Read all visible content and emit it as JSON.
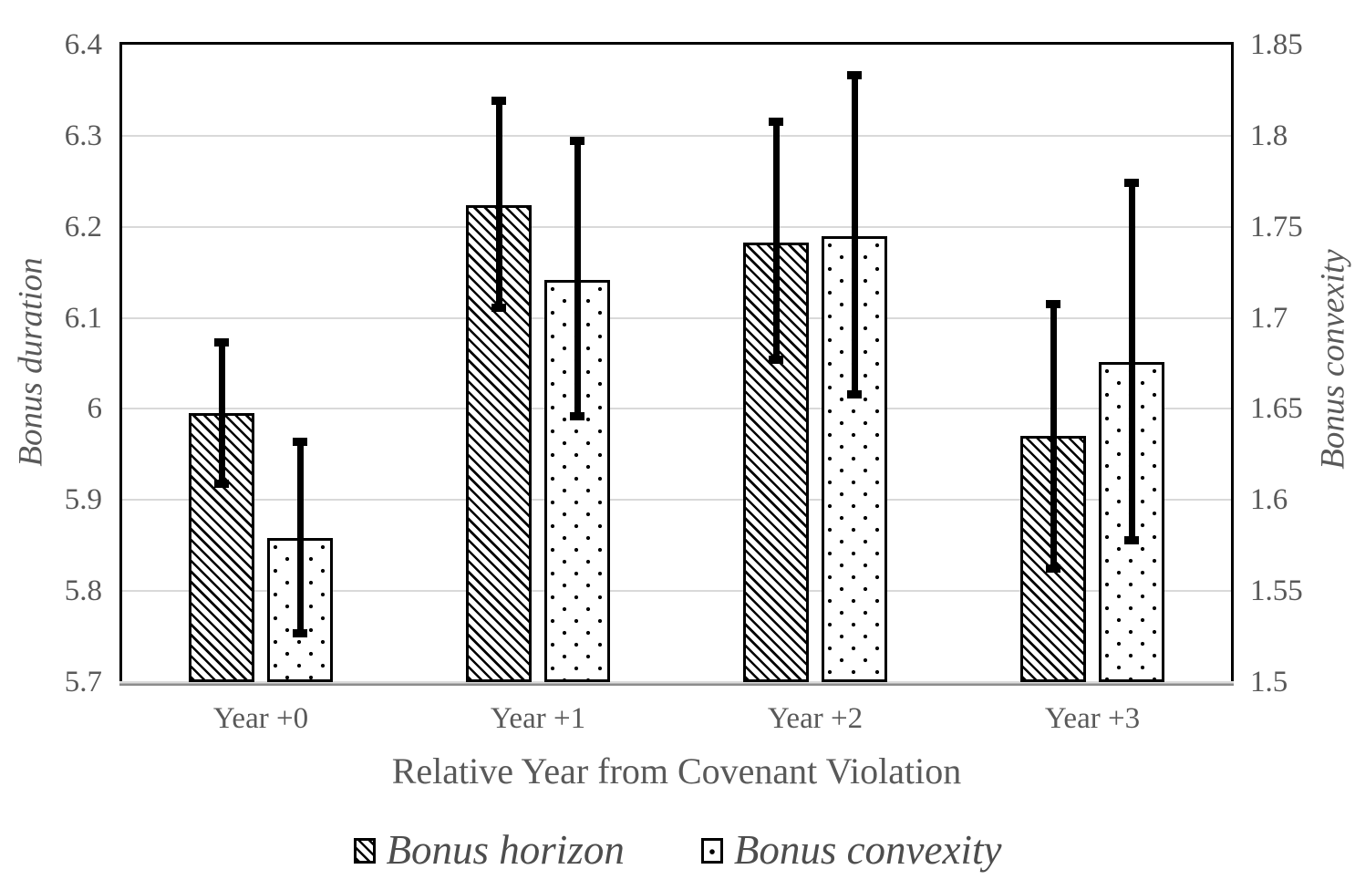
{
  "chart_data": {
    "type": "bar",
    "categories": [
      "Year +0",
      "Year +1",
      "Year +2",
      "Year +3"
    ],
    "series": [
      {
        "name": "Bonus horizon",
        "axis": "left",
        "pattern": "hatch",
        "values": [
          5.995,
          6.224,
          6.183,
          5.97
        ],
        "error_low": [
          5.918,
          6.111,
          6.054,
          5.825
        ],
        "error_high": [
          6.073,
          6.338,
          6.315,
          6.115
        ]
      },
      {
        "name": "Bonus convexity",
        "axis": "right",
        "pattern": "dots",
        "values": [
          1.579,
          1.721,
          1.745,
          1.676
        ],
        "error_low": [
          1.527,
          1.646,
          1.658,
          1.578
        ],
        "error_high": [
          1.632,
          1.797,
          1.833,
          1.774
        ]
      }
    ],
    "left_axis": {
      "title": "Bonus duration",
      "min": 5.7,
      "max": 6.4,
      "tick_step": 0.1,
      "ticks": [
        "6.4",
        "6.3",
        "6.2",
        "6.1",
        "6",
        "5.9",
        "5.8",
        "5.7"
      ]
    },
    "right_axis": {
      "title": "Bonus convexity",
      "min": 1.5,
      "max": 1.85,
      "tick_step": 0.05,
      "ticks": [
        "1.85",
        "1.8",
        "1.75",
        "1.7",
        "1.65",
        "1.6",
        "1.55",
        "1.5"
      ]
    },
    "xlabel": "Relative Year from Covenant Violation",
    "grid": true,
    "legend_position": "bottom",
    "colors": {
      "bar_fill": "#ffffff",
      "bar_stroke": "#000000",
      "error_bar": "#000000",
      "gridline": "#d9d9d9",
      "axis_text": "#595959",
      "legend_text": "#4d4d4d",
      "axis_line": "#bfbfbf"
    }
  },
  "legend": {
    "items": [
      {
        "label": "Bonus horizon"
      },
      {
        "label": "Bonus convexity"
      }
    ]
  }
}
